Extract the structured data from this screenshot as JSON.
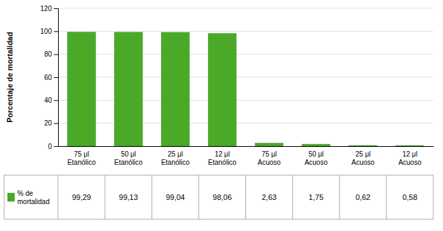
{
  "chart_data": {
    "type": "bar",
    "categories": [
      "75 μl\nEtanólico",
      "50 μl\nEtanólico",
      "25 μl\nEtanólico",
      "12 μl\nEtanólico",
      "75 μl\nAcuoso",
      "50 μl\nAcuoso",
      "25 μl\nAcuoso",
      "12 μl\nAcuoso"
    ],
    "series": [
      {
        "name": "% de\nmortalidad",
        "color": "#4aaa28",
        "values": [
          99.29,
          99.13,
          99.04,
          98.06,
          2.63,
          1.75,
          0.62,
          0.58
        ],
        "value_labels": [
          "99,29",
          "99,13",
          "99,04",
          "98,06",
          "2,63",
          "1,75",
          "0,62",
          "0,58"
        ]
      }
    ],
    "y_label": "Porcentaje de mortalidad",
    "ylim": [
      0,
      120
    ],
    "yticks": [
      0,
      20,
      40,
      60,
      80,
      100,
      120
    ],
    "grid": true,
    "legend": "bottom"
  }
}
